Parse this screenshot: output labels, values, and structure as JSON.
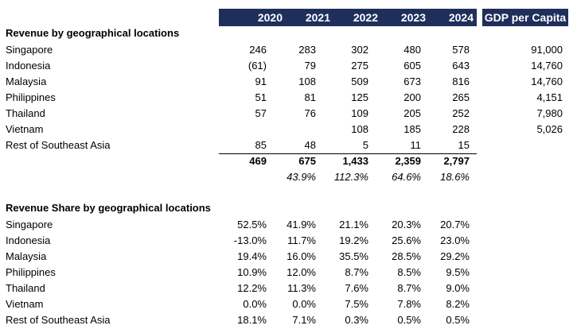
{
  "colors": {
    "header_bg": "#1f2f5c"
  },
  "header": {
    "years": [
      "2020",
      "2021",
      "2022",
      "2023",
      "2024"
    ],
    "gdp_label": "GDP per Capita"
  },
  "revenue": {
    "title": "Revenue by geographical locations",
    "rows": [
      {
        "country": "Singapore",
        "values": [
          "246",
          "283",
          "302",
          "480",
          "578"
        ],
        "gdp": "91,000"
      },
      {
        "country": "Indonesia",
        "values": [
          "(61)",
          "79",
          "275",
          "605",
          "643"
        ],
        "gdp": "14,760"
      },
      {
        "country": "Malaysia",
        "values": [
          "91",
          "108",
          "509",
          "673",
          "816"
        ],
        "gdp": "14,760"
      },
      {
        "country": "Philippines",
        "values": [
          "51",
          "81",
          "125",
          "200",
          "265"
        ],
        "gdp": "4,151"
      },
      {
        "country": "Thailand",
        "values": [
          "57",
          "76",
          "109",
          "205",
          "252"
        ],
        "gdp": "7,980"
      },
      {
        "country": "Vietnam",
        "values": [
          "",
          "",
          "108",
          "185",
          "228"
        ],
        "gdp": "5,026"
      },
      {
        "country": "Rest of Southeast Asia",
        "values": [
          "85",
          "48",
          "5",
          "11",
          "15"
        ],
        "gdp": ""
      }
    ],
    "total": [
      "469",
      "675",
      "1,433",
      "2,359",
      "2,797"
    ],
    "growth": [
      "",
      "43.9%",
      "112.3%",
      "64.6%",
      "18.6%"
    ]
  },
  "share": {
    "title": "Revenue Share by geographical locations",
    "rows": [
      {
        "country": "Singapore",
        "values": [
          "52.5%",
          "41.9%",
          "21.1%",
          "20.3%",
          "20.7%"
        ]
      },
      {
        "country": "Indonesia",
        "values": [
          "-13.0%",
          "11.7%",
          "19.2%",
          "25.6%",
          "23.0%"
        ]
      },
      {
        "country": "Malaysia",
        "values": [
          "19.4%",
          "16.0%",
          "35.5%",
          "28.5%",
          "29.2%"
        ]
      },
      {
        "country": "Philippines",
        "values": [
          "10.9%",
          "12.0%",
          "8.7%",
          "8.5%",
          "9.5%"
        ]
      },
      {
        "country": "Thailand",
        "values": [
          "12.2%",
          "11.3%",
          "7.6%",
          "8.7%",
          "9.0%"
        ]
      },
      {
        "country": "Vietnam",
        "values": [
          "0.0%",
          "0.0%",
          "7.5%",
          "7.8%",
          "8.2%"
        ]
      },
      {
        "country": "Rest of Southeast Asia",
        "values": [
          "18.1%",
          "7.1%",
          "0.3%",
          "0.5%",
          "0.5%"
        ]
      }
    ]
  }
}
